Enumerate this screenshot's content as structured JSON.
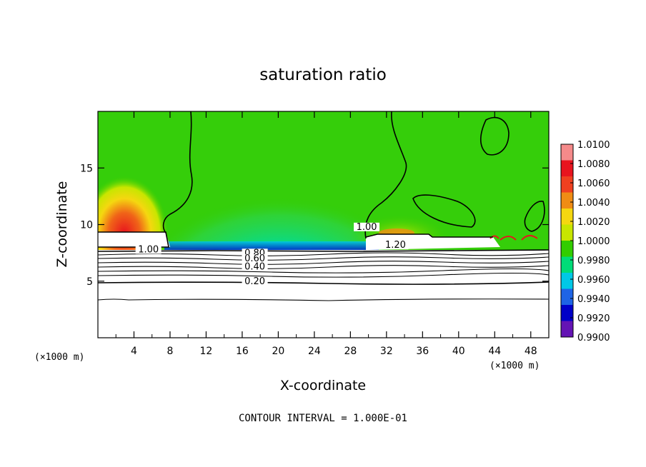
{
  "chart_data": {
    "type": "heatmap",
    "title": "saturation ratio",
    "xlabel": "X-coordinate",
    "ylabel": "Z-coordinate",
    "x_unit_left": "(×1000 m)",
    "x_unit_right": "(×1000 m)",
    "xlim": [
      0,
      50
    ],
    "ylim": [
      0,
      20
    ],
    "x_ticks": [
      4,
      8,
      12,
      16,
      20,
      24,
      28,
      32,
      36,
      40,
      44,
      48
    ],
    "y_ticks": [
      5,
      10,
      15
    ],
    "colorbar": {
      "levels": [
        "1.0100",
        "1.0080",
        "1.0060",
        "1.0040",
        "1.0020",
        "1.0000",
        "0.9980",
        "0.9960",
        "0.9940",
        "0.9920",
        "0.9900"
      ],
      "colors": [
        "#f58a8a",
        "#e8141e",
        "#f04020",
        "#f08c14",
        "#f5d710",
        "#c8e600",
        "#32cd00",
        "#00dc78",
        "#00c8e6",
        "#1e64e6",
        "#0000c8",
        "#6414b4"
      ]
    },
    "contour_labels": [
      {
        "text": "1.00",
        "x": 5.6,
        "y": 7.6
      },
      {
        "text": "0.80",
        "x": 17.4,
        "y": 7.3
      },
      {
        "text": "0.60",
        "x": 17.4,
        "y": 6.8
      },
      {
        "text": "0.40",
        "x": 17.4,
        "y": 6.1
      },
      {
        "text": "0.20",
        "x": 17.4,
        "y": 4.8
      },
      {
        "text": "1.20",
        "x": 33.0,
        "y": 8.0
      },
      {
        "text": "1.00",
        "x": 29.8,
        "y": 9.6
      }
    ],
    "contour_interval": "CONTOUR INTERVAL = 1.000E-01"
  }
}
